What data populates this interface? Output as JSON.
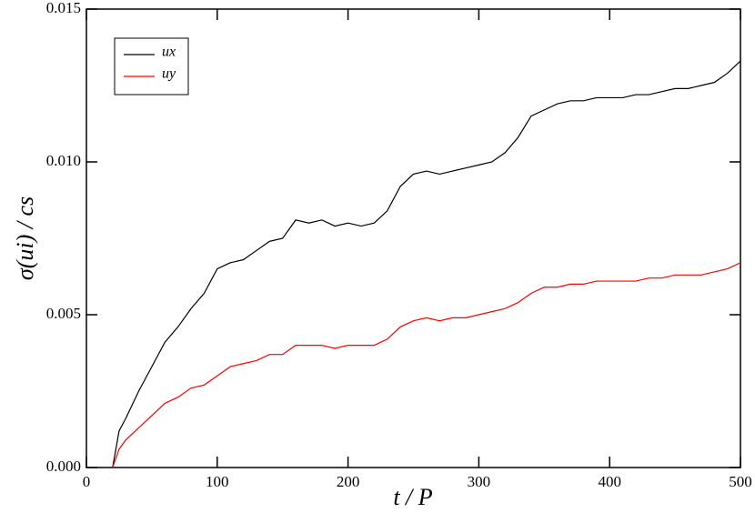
{
  "chart_data": {
    "type": "line",
    "xlabel": "t / P",
    "ylabel": "σ(ui) / cs",
    "x": [
      20,
      25,
      30,
      40,
      50,
      60,
      70,
      80,
      90,
      100,
      110,
      120,
      130,
      140,
      150,
      160,
      170,
      180,
      190,
      200,
      210,
      220,
      230,
      240,
      250,
      260,
      270,
      280,
      290,
      300,
      310,
      320,
      330,
      340,
      350,
      360,
      370,
      380,
      390,
      400,
      410,
      420,
      430,
      440,
      450,
      460,
      470,
      480,
      490,
      500
    ],
    "series": [
      {
        "name": "ux",
        "color": "#000000",
        "values": [
          0,
          0.0012,
          0.0016,
          0.0025,
          0.0033,
          0.0041,
          0.0046,
          0.0052,
          0.0057,
          0.0065,
          0.0067,
          0.0068,
          0.0071,
          0.0074,
          0.0075,
          0.0081,
          0.008,
          0.0081,
          0.0079,
          0.008,
          0.0079,
          0.008,
          0.0084,
          0.0092,
          0.0096,
          0.0097,
          0.0096,
          0.0097,
          0.0098,
          0.0099,
          0.01,
          0.0103,
          0.0108,
          0.0115,
          0.0117,
          0.0119,
          0.012,
          0.012,
          0.0121,
          0.0121,
          0.0121,
          0.0122,
          0.0122,
          0.0123,
          0.0124,
          0.0124,
          0.0125,
          0.0126,
          0.0129,
          0.0133
        ]
      },
      {
        "name": "uy",
        "color": "#ff0000",
        "values": [
          0,
          0.0006,
          0.0009,
          0.0013,
          0.0017,
          0.0021,
          0.0023,
          0.0026,
          0.0027,
          0.003,
          0.0033,
          0.0034,
          0.0035,
          0.0037,
          0.0037,
          0.004,
          0.004,
          0.004,
          0.0039,
          0.004,
          0.004,
          0.004,
          0.0042,
          0.0046,
          0.0048,
          0.0049,
          0.0048,
          0.0049,
          0.0049,
          0.005,
          0.0051,
          0.0052,
          0.0054,
          0.0057,
          0.0059,
          0.0059,
          0.006,
          0.006,
          0.0061,
          0.0061,
          0.0061,
          0.0061,
          0.0062,
          0.0062,
          0.0063,
          0.0063,
          0.0063,
          0.0064,
          0.0065,
          0.0067
        ]
      }
    ],
    "xlim": [
      0,
      500
    ],
    "xticks": [
      0,
      100,
      200,
      300,
      400,
      500
    ],
    "ylim": [
      0,
      0.015
    ],
    "yticks": [
      {
        "value": 0,
        "label": "0.000"
      },
      0.005,
      {
        "value": 0.01,
        "label": "0.010"
      },
      0.015
    ],
    "grid": false,
    "legend": "upper left"
  }
}
